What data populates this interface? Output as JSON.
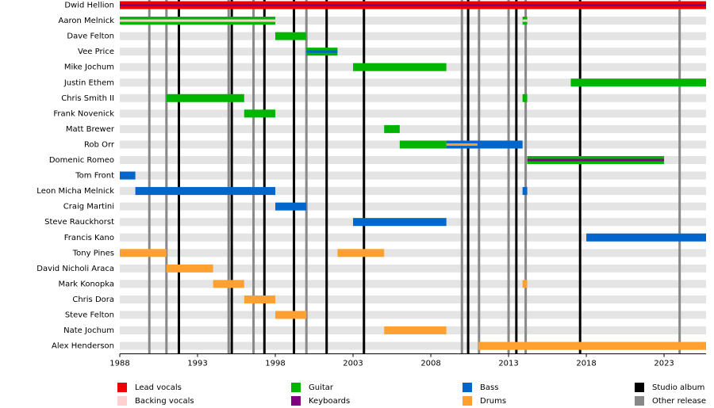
{
  "chart_data": {
    "type": "timeline",
    "xlim": [
      1988,
      2025.7
    ],
    "xticks": [
      1988,
      1993,
      1998,
      2003,
      2008,
      2013,
      2018,
      2023
    ],
    "roles": [
      {
        "name": "Lead vocals",
        "color": "#ee0000"
      },
      {
        "name": "Guitar",
        "color": "#00b400"
      },
      {
        "name": "Bass",
        "color": "#0066cc"
      },
      {
        "name": "Studio album",
        "color": "#000000"
      },
      {
        "name": "Backing vocals",
        "color": "#ffd0d0"
      },
      {
        "name": "Keyboards",
        "color": "#800080"
      },
      {
        "name": "Drums",
        "color": "#ffa030"
      },
      {
        "name": "Other release",
        "color": "#888888"
      }
    ],
    "studio_albums": [
      1991.8,
      1995.2,
      1997.3,
      1999.2,
      2001.3,
      2003.7,
      2010.4,
      2013.5,
      2017.6
    ],
    "other_releases": [
      1989.9,
      1991.0,
      1995.0,
      1996.6,
      2000.0,
      2010.0,
      2011.1,
      2013.0,
      2014.1,
      2024.0
    ],
    "members": [
      {
        "name": "Dwid Hellion",
        "bars": [
          {
            "role": "Lead vocals",
            "start": 1988,
            "end": 2025.7
          }
        ],
        "overlays": [
          {
            "role": "Keyboards",
            "start": 1988,
            "end": 2025.7
          }
        ]
      },
      {
        "name": "Aaron Melnick",
        "bars": [
          {
            "role": "Guitar",
            "start": 1988,
            "end": 1998
          },
          {
            "role": "Guitar",
            "start": 2013.9,
            "end": 2014.2
          }
        ],
        "overlays": [
          {
            "role": "Backing vocals",
            "start": 1988,
            "end": 1998
          },
          {
            "role": "Backing vocals",
            "start": 2013.9,
            "end": 2014.2
          }
        ]
      },
      {
        "name": "Dave Felton",
        "bars": [
          {
            "role": "Guitar",
            "start": 1998,
            "end": 2000
          }
        ],
        "overlays": []
      },
      {
        "name": "Vee Price",
        "bars": [
          {
            "role": "Guitar",
            "start": 2000,
            "end": 2002
          }
        ],
        "overlays": [
          {
            "role": "Bass",
            "start": 2000,
            "end": 2002
          }
        ]
      },
      {
        "name": "Mike Jochum",
        "bars": [
          {
            "role": "Guitar",
            "start": 2003,
            "end": 2009
          }
        ],
        "overlays": []
      },
      {
        "name": "Justin Ethem",
        "bars": [
          {
            "role": "Guitar",
            "start": 2017,
            "end": 2025.7
          }
        ],
        "overlays": []
      },
      {
        "name": "Chris Smith II",
        "bars": [
          {
            "role": "Guitar",
            "start": 1991,
            "end": 1996
          },
          {
            "role": "Guitar",
            "start": 2013.9,
            "end": 2014.2
          }
        ],
        "overlays": []
      },
      {
        "name": "Frank Novenick",
        "bars": [
          {
            "role": "Guitar",
            "start": 1996,
            "end": 1998
          }
        ],
        "overlays": []
      },
      {
        "name": "Matt Brewer",
        "bars": [
          {
            "role": "Guitar",
            "start": 2005,
            "end": 2006
          }
        ],
        "overlays": []
      },
      {
        "name": "Rob Orr",
        "bars": [
          {
            "role": "Guitar",
            "start": 2006,
            "end": 2009
          },
          {
            "role": "Bass",
            "start": 2009,
            "end": 2013.9
          }
        ],
        "overlays": [
          {
            "role": "Drums",
            "start": 2009,
            "end": 2011
          }
        ]
      },
      {
        "name": "Domenic Romeo",
        "bars": [
          {
            "role": "Guitar",
            "start": 2014.2,
            "end": 2023
          }
        ],
        "overlays": [
          {
            "role": "Keyboards",
            "start": 2014.2,
            "end": 2023
          }
        ]
      },
      {
        "name": "Tom Front",
        "bars": [
          {
            "role": "Bass",
            "start": 1988,
            "end": 1989
          }
        ],
        "overlays": []
      },
      {
        "name": "Leon Micha Melnick",
        "bars": [
          {
            "role": "Bass",
            "start": 1989,
            "end": 1998
          },
          {
            "role": "Bass",
            "start": 2013.9,
            "end": 2014.2
          }
        ],
        "overlays": []
      },
      {
        "name": "Craig Martini",
        "bars": [
          {
            "role": "Bass",
            "start": 1998,
            "end": 2000
          }
        ],
        "overlays": []
      },
      {
        "name": "Steve Rauckhorst",
        "bars": [
          {
            "role": "Bass",
            "start": 2003,
            "end": 2009
          }
        ],
        "overlays": []
      },
      {
        "name": "Francis Kano",
        "bars": [
          {
            "role": "Bass",
            "start": 2018,
            "end": 2025.7
          }
        ],
        "overlays": []
      },
      {
        "name": "Tony Pines",
        "bars": [
          {
            "role": "Drums",
            "start": 1988,
            "end": 1991
          },
          {
            "role": "Drums",
            "start": 2002,
            "end": 2005
          }
        ],
        "overlays": []
      },
      {
        "name": "David Nicholi Araca",
        "bars": [
          {
            "role": "Drums",
            "start": 1991,
            "end": 1994
          }
        ],
        "overlays": []
      },
      {
        "name": "Mark Konopka",
        "bars": [
          {
            "role": "Drums",
            "start": 1994,
            "end": 1996
          },
          {
            "role": "Drums",
            "start": 2013.9,
            "end": 2014.2
          }
        ],
        "overlays": []
      },
      {
        "name": "Chris Dora",
        "bars": [
          {
            "role": "Drums",
            "start": 1996,
            "end": 1998
          }
        ],
        "overlays": []
      },
      {
        "name": "Steve Felton",
        "bars": [
          {
            "role": "Drums",
            "start": 1998,
            "end": 2000
          }
        ],
        "overlays": []
      },
      {
        "name": "Nate Jochum",
        "bars": [
          {
            "role": "Drums",
            "start": 2005,
            "end": 2009
          }
        ],
        "overlays": []
      },
      {
        "name": "Alex Henderson",
        "bars": [
          {
            "role": "Drums",
            "start": 2011.05,
            "end": 2025.7
          }
        ],
        "overlays": []
      }
    ]
  }
}
